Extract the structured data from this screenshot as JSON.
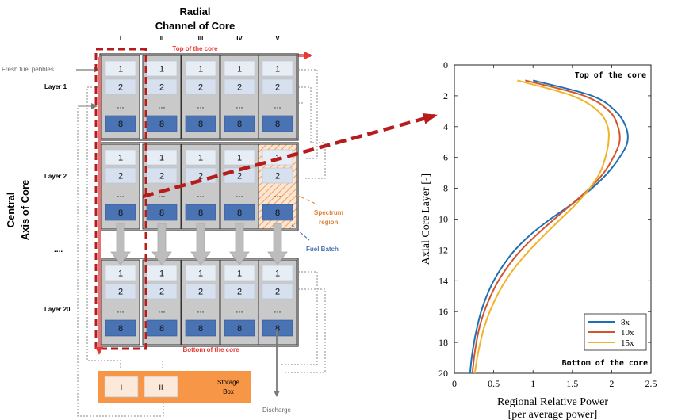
{
  "diagram": {
    "title_line1": "Radial",
    "title_line2": "Channel of Core",
    "side_title_line1": "Central",
    "side_title_line2": "Axis of Core",
    "channels": [
      "I",
      "II",
      "III",
      "IV",
      "V"
    ],
    "top_label": "Top of the core",
    "bottom_label": "Bottom of the core",
    "fresh_label": "Fresh fuel pebbles",
    "layer_labels": [
      "Layer 1",
      "Layer 2",
      "....",
      "Layer 20"
    ],
    "batch_labels": [
      "1",
      "2",
      "...",
      "8"
    ],
    "spectrum_label_line1": "Spectrum",
    "spectrum_label_line2": "region",
    "fuel_batch_label": "Fuel Batch",
    "storage": {
      "cells": [
        "I",
        "II"
      ],
      "ellipsis": "...",
      "label_line1": "Storage",
      "label_line2": "Box"
    },
    "discharge_label": "Discharge",
    "colors": {
      "red": "#e53935",
      "dark_red": "#b71c1c",
      "blue_cell": "#4a73b3",
      "light_cell": "#dbe5f1",
      "orange": "#f79646",
      "gray": "#c4c4c4"
    }
  },
  "chart_data": {
    "type": "line",
    "xlabel_line1": "Regional Relative Power",
    "xlabel_line2": "[per average power]",
    "ylabel": "Axial Core Layer [-]",
    "xlim": [
      0,
      2.5
    ],
    "ylim": [
      0,
      20
    ],
    "y_inverted": true,
    "x_ticks": [
      "0",
      "0.5",
      "1",
      "1.5",
      "2",
      "2.5"
    ],
    "y_ticks": [
      "0",
      "2",
      "4",
      "6",
      "8",
      "10",
      "12",
      "14",
      "16",
      "18",
      "20"
    ],
    "annotations": {
      "top": "Top of the core",
      "bottom": "Bottom of the core"
    },
    "legend_position": "bottom-right",
    "series": [
      {
        "name": "8x",
        "color": "#1f6fb5",
        "points": [
          [
            1.0,
            1
          ],
          [
            1.75,
            2
          ],
          [
            2.05,
            3
          ],
          [
            2.18,
            4
          ],
          [
            2.2,
            5
          ],
          [
            2.1,
            6
          ],
          [
            1.95,
            7
          ],
          [
            1.75,
            8
          ],
          [
            1.5,
            9
          ],
          [
            1.22,
            10
          ],
          [
            0.97,
            11
          ],
          [
            0.77,
            12
          ],
          [
            0.62,
            13
          ],
          [
            0.5,
            14
          ],
          [
            0.41,
            15
          ],
          [
            0.34,
            16
          ],
          [
            0.29,
            17
          ],
          [
            0.25,
            18
          ],
          [
            0.22,
            19
          ],
          [
            0.2,
            20
          ]
        ]
      },
      {
        "name": "10x",
        "color": "#d2542b",
        "points": [
          [
            0.9,
            1
          ],
          [
            1.65,
            2
          ],
          [
            1.97,
            3
          ],
          [
            2.08,
            4
          ],
          [
            2.1,
            5
          ],
          [
            2.02,
            6
          ],
          [
            1.9,
            7
          ],
          [
            1.72,
            8
          ],
          [
            1.5,
            9
          ],
          [
            1.27,
            10
          ],
          [
            1.05,
            11
          ],
          [
            0.85,
            12
          ],
          [
            0.69,
            13
          ],
          [
            0.56,
            14
          ],
          [
            0.46,
            15
          ],
          [
            0.38,
            16
          ],
          [
            0.32,
            17
          ],
          [
            0.28,
            18
          ],
          [
            0.25,
            19
          ],
          [
            0.23,
            20
          ]
        ]
      },
      {
        "name": "15x",
        "color": "#f0b429",
        "points": [
          [
            0.8,
            1
          ],
          [
            1.5,
            2
          ],
          [
            1.83,
            3
          ],
          [
            1.95,
            4
          ],
          [
            1.96,
            5
          ],
          [
            1.92,
            6
          ],
          [
            1.85,
            7
          ],
          [
            1.72,
            8
          ],
          [
            1.55,
            9
          ],
          [
            1.35,
            10
          ],
          [
            1.15,
            11
          ],
          [
            0.96,
            12
          ],
          [
            0.79,
            13
          ],
          [
            0.65,
            14
          ],
          [
            0.54,
            15
          ],
          [
            0.45,
            16
          ],
          [
            0.38,
            17
          ],
          [
            0.33,
            18
          ],
          [
            0.29,
            19
          ],
          [
            0.26,
            20
          ]
        ]
      }
    ]
  }
}
